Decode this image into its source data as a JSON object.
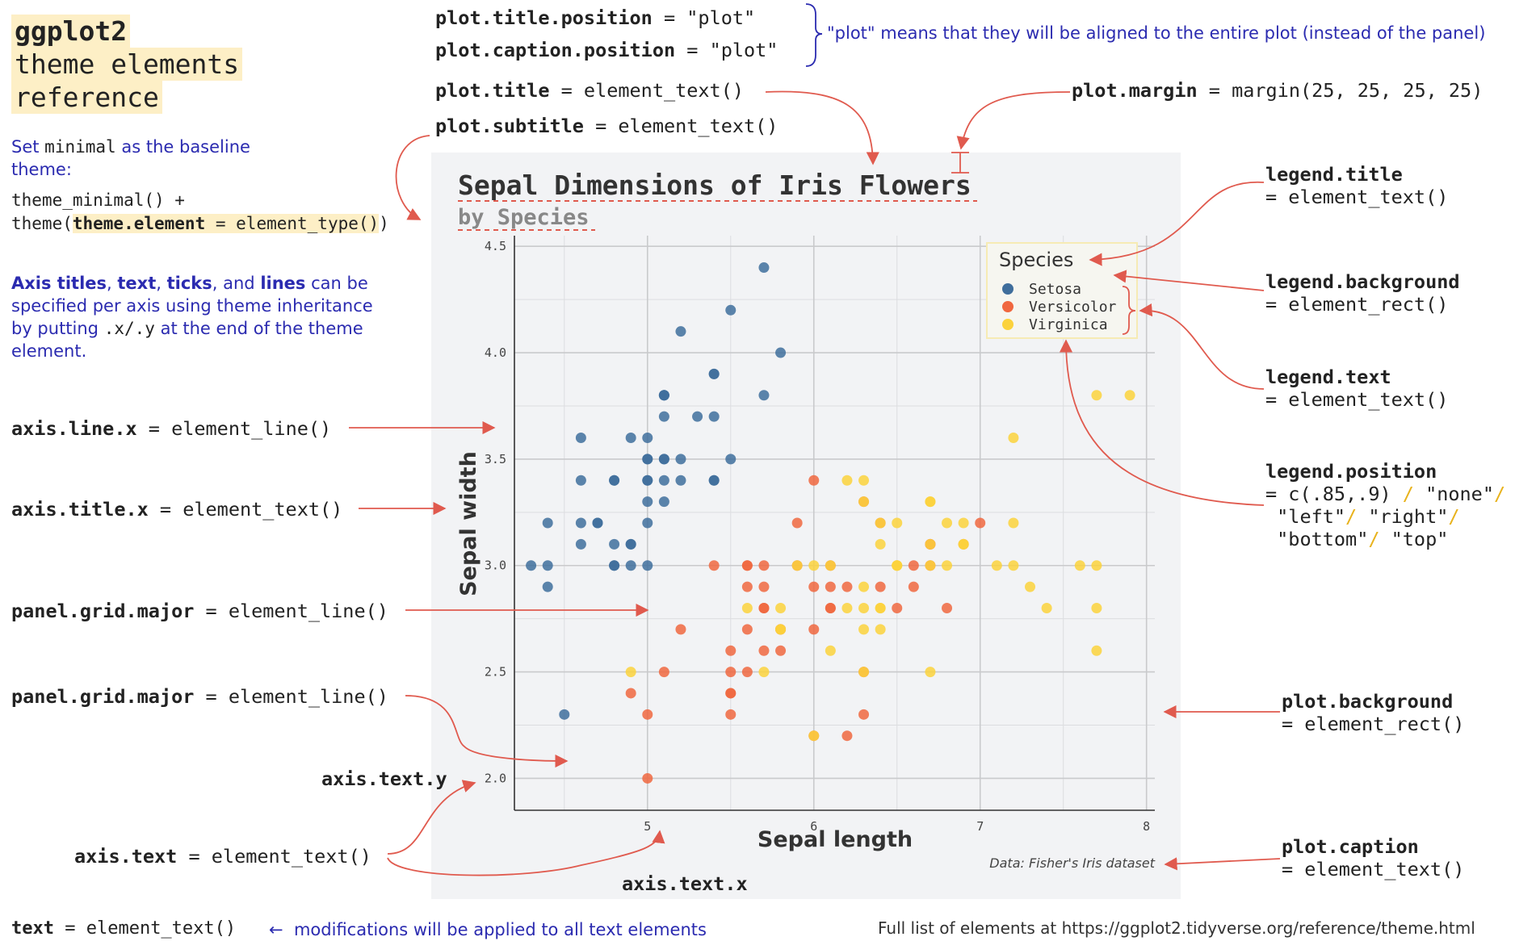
{
  "header": {
    "line1": "ggplot2",
    "line2": "theme elements",
    "line3": "reference"
  },
  "baseline_note": {
    "pre": "Set ",
    "code": "minimal",
    "post": " as the baseline",
    "line2": "theme:",
    "code1": "theme_minimal() +",
    "code2_pre": "theme(",
    "code2_key": "theme.element",
    "code2_post": " = element_type()",
    "code2_close": ")"
  },
  "axis_note": {
    "w1": "Axis titles",
    "s1": ", ",
    "w2": "text",
    "s2": ", ",
    "w3": "ticks",
    "s3": ", and ",
    "w4": "lines",
    "s4": " can be",
    "line2": "specified per axis using theme inheritance",
    "line3_pre": "by putting ",
    "line3_code": ".x/.y",
    "line3_post": " at the end of the theme",
    "line4": "element."
  },
  "labels": {
    "title_position_k": "plot.title.position",
    "title_position_v": " = \"plot\"",
    "caption_position_k": "plot.caption.position",
    "caption_position_v": " = \"plot\"",
    "position_note": "\"plot\" means that they will be aligned to the entire plot (instead of the panel)",
    "plot_title_k": "plot.title",
    "plot_title_v": " = element_text()",
    "plot_subtitle_k": "plot.subtitle",
    "plot_subtitle_v": " = element_text()",
    "plot_margin_k": "plot.margin",
    "plot_margin_v": " = margin(25, 25, 25, 25)",
    "legend_title_k": "legend.title",
    "legend_title_v": "= element_text()",
    "legend_background_k": "legend.background",
    "legend_background_v": "= element_rect()",
    "legend_text_k": "legend.text",
    "legend_text_v": "= element_text()",
    "legend_position_k": "legend.position",
    "legend_position_v1": "= c(.85,.9)",
    "legend_position_s1": " / ",
    "legend_position_v1b": "\"none\"",
    "legend_position_s2": "/",
    "legend_position_v2a": "\"left\"",
    "legend_position_s3": "/ ",
    "legend_position_v2b": "\"right\"",
    "legend_position_s4": "/",
    "legend_position_v3a": "\"bottom\"",
    "legend_position_s5": "/ ",
    "legend_position_v3b": "\"top\"",
    "plot_background_k": "plot.background",
    "plot_background_v": "= element_rect()",
    "plot_caption_k": "plot.caption",
    "plot_caption_v": "= element_text()",
    "axis_line_x_k": "axis.line.x",
    "axis_line_x_v": " = element_line()",
    "axis_title_x_k": "axis.title.x",
    "axis_title_x_v": " = element_text()",
    "panel_grid_major_k": "panel.grid.major",
    "panel_grid_major_v": " = element_line()",
    "panel_grid_major2_k": "panel.grid.major",
    "panel_grid_major2_v": " = element_line()",
    "axis_text_y_k": "axis.text.y",
    "axis_text_k": "axis.text",
    "axis_text_v": " = element_text()",
    "axis_text_x_k": "axis.text.x",
    "text_k": "text",
    "text_v": " = element_text()",
    "text_arrow": "←",
    "text_note": "modifications will be applied to all text elements",
    "full_list": "Full list of elements at https://ggplot2.tidyverse.org/reference/theme.html"
  },
  "colors": {
    "arrow": "#e05a4e",
    "note_blue": "#2b2bb0",
    "plot_bg": "#f2f3f5",
    "grid": "#c9cacc",
    "setosa": "#3f6e9c",
    "versicolor": "#f0673f",
    "virginica": "#fbd23c",
    "legend_box": "#f6ebb4"
  },
  "chart_data": {
    "type": "scatter",
    "title": "Sepal Dimensions of Iris Flowers",
    "subtitle": "by Species",
    "xlabel": "Sepal length",
    "ylabel": "Sepal width",
    "caption": "Data: Fisher's Iris dataset",
    "xlim": [
      4.2,
      8.05
    ],
    "ylim": [
      1.85,
      4.55
    ],
    "xticks": [
      5,
      6,
      7,
      8
    ],
    "yticks": [
      2.0,
      2.5,
      3.0,
      3.5,
      4.0,
      4.5
    ],
    "xtick_labels": [
      "5",
      "6",
      "7",
      "8"
    ],
    "ytick_labels": [
      "2.0",
      "2.5",
      "3.0",
      "3.5",
      "4.0",
      "4.5"
    ],
    "grid": true,
    "legend": {
      "title": "Species",
      "position": "top-right"
    },
    "series": [
      {
        "name": "Setosa",
        "color": "#3f6e9c",
        "x": [
          5.1,
          4.9,
          4.7,
          4.6,
          5.0,
          5.4,
          4.6,
          5.0,
          4.4,
          4.9,
          5.4,
          4.8,
          4.8,
          4.3,
          5.8,
          5.7,
          5.4,
          5.1,
          5.7,
          5.1,
          5.4,
          5.1,
          4.6,
          5.1,
          4.8,
          5.0,
          5.0,
          5.2,
          5.2,
          4.7,
          4.8,
          5.4,
          5.2,
          5.5,
          4.9,
          5.0,
          5.5,
          4.9,
          4.4,
          5.1,
          5.0,
          4.5,
          4.4,
          5.0,
          5.1,
          4.8,
          5.1,
          4.6,
          5.3,
          5.0
        ],
        "y": [
          3.5,
          3.0,
          3.2,
          3.1,
          3.6,
          3.9,
          3.4,
          3.4,
          2.9,
          3.1,
          3.7,
          3.4,
          3.0,
          3.0,
          4.0,
          4.4,
          3.9,
          3.5,
          3.8,
          3.8,
          3.4,
          3.7,
          3.6,
          3.3,
          3.4,
          3.0,
          3.4,
          3.5,
          3.4,
          3.2,
          3.1,
          3.4,
          4.1,
          4.2,
          3.1,
          3.2,
          3.5,
          3.6,
          3.0,
          3.4,
          3.5,
          2.3,
          3.2,
          3.5,
          3.8,
          3.0,
          3.8,
          3.2,
          3.7,
          3.3
        ]
      },
      {
        "name": "Versicolor",
        "color": "#f0673f",
        "x": [
          7.0,
          6.4,
          6.9,
          5.5,
          6.5,
          5.7,
          6.3,
          4.9,
          6.6,
          5.2,
          5.0,
          5.9,
          6.0,
          6.1,
          5.6,
          6.7,
          5.6,
          5.8,
          6.2,
          5.6,
          5.9,
          6.1,
          6.3,
          6.1,
          6.4,
          6.6,
          6.8,
          6.7,
          6.0,
          5.7,
          5.5,
          5.5,
          5.8,
          6.0,
          5.4,
          6.0,
          6.7,
          6.3,
          5.6,
          5.5,
          5.5,
          6.1,
          5.8,
          5.0,
          5.6,
          5.7,
          5.7,
          6.2,
          5.1,
          5.7
        ],
        "y": [
          3.2,
          3.2,
          3.1,
          2.3,
          2.8,
          2.8,
          3.3,
          2.4,
          2.9,
          2.7,
          2.0,
          3.0,
          2.2,
          2.9,
          2.9,
          3.1,
          3.0,
          2.7,
          2.2,
          2.5,
          3.2,
          2.8,
          2.5,
          2.8,
          2.9,
          3.0,
          2.8,
          3.0,
          2.9,
          2.6,
          2.4,
          2.4,
          2.7,
          2.7,
          3.0,
          3.4,
          3.1,
          2.3,
          3.0,
          2.5,
          2.6,
          3.0,
          2.6,
          2.3,
          2.7,
          3.0,
          2.9,
          2.9,
          2.5,
          2.8
        ]
      },
      {
        "name": "Virginica",
        "color": "#fbd23c",
        "x": [
          6.3,
          5.8,
          7.1,
          6.3,
          6.5,
          7.6,
          4.9,
          7.3,
          6.7,
          7.2,
          6.5,
          6.4,
          6.8,
          5.7,
          5.8,
          6.4,
          6.5,
          7.7,
          7.7,
          6.0,
          6.9,
          5.6,
          7.7,
          6.3,
          6.7,
          7.2,
          6.2,
          6.1,
          6.4,
          7.2,
          7.4,
          7.9,
          6.4,
          6.3,
          6.1,
          7.7,
          6.3,
          6.4,
          6.0,
          6.9,
          6.7,
          6.9,
          5.8,
          6.8,
          6.7,
          6.7,
          6.3,
          6.5,
          6.2,
          5.9
        ],
        "y": [
          3.3,
          2.7,
          3.0,
          2.9,
          3.0,
          3.0,
          2.5,
          2.9,
          2.5,
          3.6,
          3.2,
          2.7,
          3.0,
          2.5,
          2.8,
          3.2,
          3.0,
          3.8,
          2.6,
          2.2,
          3.2,
          2.8,
          2.8,
          2.7,
          3.3,
          3.2,
          2.8,
          3.0,
          2.8,
          3.0,
          2.8,
          3.8,
          2.8,
          2.8,
          2.6,
          3.0,
          3.4,
          3.1,
          3.0,
          3.1,
          3.1,
          3.1,
          2.7,
          3.2,
          3.3,
          3.0,
          2.5,
          3.0,
          3.4,
          3.0
        ]
      }
    ]
  }
}
